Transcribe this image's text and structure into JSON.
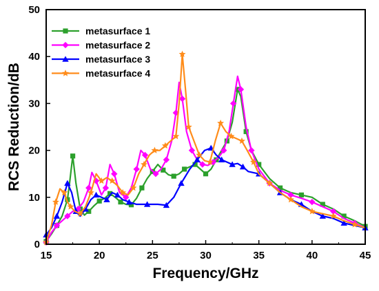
{
  "chart_data": {
    "type": "line",
    "title": "",
    "xlabel": "Frequency/GHz",
    "ylabel": "RCS Reduction/dB",
    "xlim": [
      15,
      45
    ],
    "ylim": [
      0,
      50
    ],
    "xticks": [
      15,
      20,
      25,
      30,
      35,
      40,
      45
    ],
    "yticks": [
      0,
      10,
      20,
      30,
      40,
      50
    ],
    "xtick_labels": [
      "15",
      "20",
      "25",
      "30",
      "35",
      "40",
      "45"
    ],
    "ytick_labels": [
      "0",
      "10",
      "20",
      "30",
      "40",
      "50"
    ],
    "grid": false,
    "legend_position": "top-left",
    "series": [
      {
        "name": "metasurface 1",
        "color": "#2ca02c",
        "marker": "square",
        "points": [
          [
            15.0,
            0.6
          ],
          [
            15.5,
            2.2
          ],
          [
            16.0,
            4.0
          ],
          [
            16.5,
            6.0
          ],
          [
            17.0,
            9.5
          ],
          [
            17.2,
            13.0
          ],
          [
            17.5,
            18.8
          ],
          [
            17.8,
            13.0
          ],
          [
            18.2,
            7.5
          ],
          [
            18.6,
            6.2
          ],
          [
            19.0,
            7.0
          ],
          [
            19.5,
            8.2
          ],
          [
            20.0,
            9.2
          ],
          [
            20.5,
            9.8
          ],
          [
            21.0,
            10.8
          ],
          [
            21.5,
            10.0
          ],
          [
            22.0,
            9.0
          ],
          [
            22.5,
            8.5
          ],
          [
            23.0,
            8.4
          ],
          [
            23.5,
            9.8
          ],
          [
            24.0,
            12.0
          ],
          [
            24.5,
            14.0
          ],
          [
            25.0,
            15.5
          ],
          [
            25.5,
            17.0
          ],
          [
            26.0,
            15.8
          ],
          [
            26.5,
            14.8
          ],
          [
            27.0,
            14.5
          ],
          [
            27.5,
            15.0
          ],
          [
            28.0,
            16.0
          ],
          [
            28.5,
            16.5
          ],
          [
            29.0,
            17.0
          ],
          [
            29.5,
            16.0
          ],
          [
            30.0,
            15.0
          ],
          [
            30.5,
            16.0
          ],
          [
            31.0,
            18.0
          ],
          [
            31.5,
            20.0
          ],
          [
            32.0,
            22.0
          ],
          [
            32.5,
            26.0
          ],
          [
            33.0,
            33.0
          ],
          [
            33.3,
            31.5
          ],
          [
            33.8,
            24.0
          ],
          [
            34.3,
            20.0
          ],
          [
            35.0,
            17.0
          ],
          [
            36.0,
            14.0
          ],
          [
            37.0,
            12.0
          ],
          [
            38.0,
            11.0
          ],
          [
            39.0,
            10.5
          ],
          [
            40.0,
            10.0
          ],
          [
            41.0,
            8.5
          ],
          [
            42.0,
            7.5
          ],
          [
            43.0,
            6.0
          ],
          [
            44.0,
            5.0
          ],
          [
            45.0,
            3.8
          ]
        ]
      },
      {
        "name": "metasurface 2",
        "color": "#ff00ff",
        "marker": "diamond",
        "points": [
          [
            15.0,
            0.4
          ],
          [
            15.5,
            2.5
          ],
          [
            16.0,
            4.0
          ],
          [
            16.5,
            5.0
          ],
          [
            17.0,
            6.0
          ],
          [
            17.5,
            7.0
          ],
          [
            18.0,
            7.5
          ],
          [
            18.5,
            9.0
          ],
          [
            19.0,
            12.0
          ],
          [
            19.3,
            15.3
          ],
          [
            19.7,
            13.5
          ],
          [
            20.2,
            10.5
          ],
          [
            20.6,
            12.0
          ],
          [
            21.0,
            17.0
          ],
          [
            21.4,
            15.0
          ],
          [
            21.9,
            11.0
          ],
          [
            22.5,
            10.0
          ],
          [
            23.0,
            12.0
          ],
          [
            23.5,
            16.0
          ],
          [
            23.9,
            20.0
          ],
          [
            24.3,
            19.0
          ],
          [
            24.8,
            16.0
          ],
          [
            25.3,
            15.0
          ],
          [
            25.8,
            16.0
          ],
          [
            26.3,
            18.0
          ],
          [
            26.8,
            22.0
          ],
          [
            27.2,
            28.0
          ],
          [
            27.5,
            34.5
          ],
          [
            27.8,
            31.0
          ],
          [
            28.2,
            24.0
          ],
          [
            28.7,
            20.0
          ],
          [
            29.2,
            18.0
          ],
          [
            29.7,
            17.0
          ],
          [
            30.2,
            16.8
          ],
          [
            30.7,
            17.5
          ],
          [
            31.2,
            18.5
          ],
          [
            31.7,
            20.0
          ],
          [
            32.2,
            24.0
          ],
          [
            32.6,
            30.0
          ],
          [
            33.0,
            35.8
          ],
          [
            33.3,
            33.0
          ],
          [
            33.8,
            25.0
          ],
          [
            34.3,
            20.0
          ],
          [
            35.0,
            16.0
          ],
          [
            36.0,
            13.0
          ],
          [
            37.0,
            11.5
          ],
          [
            38.0,
            10.5
          ],
          [
            39.0,
            9.8
          ],
          [
            40.0,
            9.0
          ],
          [
            41.0,
            8.0
          ],
          [
            42.0,
            7.0
          ],
          [
            43.0,
            5.5
          ],
          [
            44.0,
            4.5
          ],
          [
            45.0,
            3.5
          ]
        ]
      },
      {
        "name": "metasurface 3",
        "color": "#0000ff",
        "marker": "triangle",
        "points": [
          [
            15.0,
            2.0
          ],
          [
            15.5,
            3.5
          ],
          [
            16.0,
            6.0
          ],
          [
            16.5,
            9.0
          ],
          [
            17.0,
            13.0
          ],
          [
            17.4,
            11.0
          ],
          [
            17.8,
            7.0
          ],
          [
            18.2,
            6.0
          ],
          [
            18.7,
            7.5
          ],
          [
            19.2,
            9.5
          ],
          [
            19.7,
            10.5
          ],
          [
            20.2,
            10.0
          ],
          [
            20.7,
            9.5
          ],
          [
            21.2,
            11.0
          ],
          [
            21.7,
            10.5
          ],
          [
            22.2,
            9.5
          ],
          [
            22.8,
            9.0
          ],
          [
            23.5,
            8.5
          ],
          [
            24.5,
            8.5
          ],
          [
            25.5,
            8.5
          ],
          [
            26.3,
            8.3
          ],
          [
            27.0,
            10.0
          ],
          [
            27.7,
            13.0
          ],
          [
            28.5,
            16.0
          ],
          [
            29.2,
            18.0
          ],
          [
            29.9,
            20.0
          ],
          [
            30.5,
            20.5
          ],
          [
            31.0,
            19.0
          ],
          [
            31.5,
            18.0
          ],
          [
            32.0,
            17.5
          ],
          [
            32.5,
            17.0
          ],
          [
            33.0,
            17.2
          ],
          [
            33.5,
            16.5
          ],
          [
            34.0,
            15.5
          ],
          [
            35.0,
            15.0
          ],
          [
            36.0,
            13.0
          ],
          [
            37.0,
            11.0
          ],
          [
            38.0,
            9.5
          ],
          [
            39.0,
            8.5
          ],
          [
            40.0,
            7.0
          ],
          [
            41.0,
            6.0
          ],
          [
            42.0,
            5.5
          ],
          [
            43.0,
            4.5
          ],
          [
            44.0,
            4.0
          ],
          [
            45.0,
            3.5
          ]
        ]
      },
      {
        "name": "metasurface 4",
        "color": "#ff8c1a",
        "marker": "star",
        "points": [
          [
            15.0,
            0.4
          ],
          [
            15.5,
            4.0
          ],
          [
            15.9,
            9.0
          ],
          [
            16.3,
            11.8
          ],
          [
            16.7,
            11.0
          ],
          [
            17.0,
            9.0
          ],
          [
            17.3,
            8.0
          ],
          [
            17.7,
            7.0
          ],
          [
            18.2,
            6.5
          ],
          [
            18.7,
            8.0
          ],
          [
            19.2,
            11.0
          ],
          [
            19.7,
            15.0
          ],
          [
            20.2,
            13.5
          ],
          [
            20.7,
            14.2
          ],
          [
            21.2,
            13.5
          ],
          [
            21.7,
            12.5
          ],
          [
            22.2,
            11.0
          ],
          [
            22.7,
            10.5
          ],
          [
            23.2,
            12.0
          ],
          [
            23.7,
            15.0
          ],
          [
            24.2,
            17.0
          ],
          [
            24.7,
            19.0
          ],
          [
            25.2,
            20.0
          ],
          [
            25.7,
            20.0
          ],
          [
            26.2,
            21.0
          ],
          [
            26.7,
            22.0
          ],
          [
            27.2,
            23.0
          ],
          [
            27.5,
            30.0
          ],
          [
            27.8,
            40.5
          ],
          [
            28.1,
            33.0
          ],
          [
            28.4,
            25.0
          ],
          [
            28.9,
            22.0
          ],
          [
            29.4,
            19.0
          ],
          [
            29.9,
            17.8
          ],
          [
            30.4,
            17.5
          ],
          [
            30.9,
            22.0
          ],
          [
            31.4,
            25.8
          ],
          [
            31.9,
            24.0
          ],
          [
            32.4,
            23.0
          ],
          [
            32.9,
            22.5
          ],
          [
            33.4,
            22.0
          ],
          [
            33.9,
            20.0
          ],
          [
            34.5,
            17.5
          ],
          [
            35.0,
            15.0
          ],
          [
            36.0,
            13.0
          ],
          [
            37.0,
            11.0
          ],
          [
            38.0,
            9.5
          ],
          [
            39.0,
            8.0
          ],
          [
            40.0,
            7.0
          ],
          [
            41.0,
            6.5
          ],
          [
            42.0,
            6.0
          ],
          [
            43.0,
            5.0
          ],
          [
            44.0,
            4.2
          ],
          [
            45.0,
            3.5
          ]
        ]
      }
    ]
  }
}
